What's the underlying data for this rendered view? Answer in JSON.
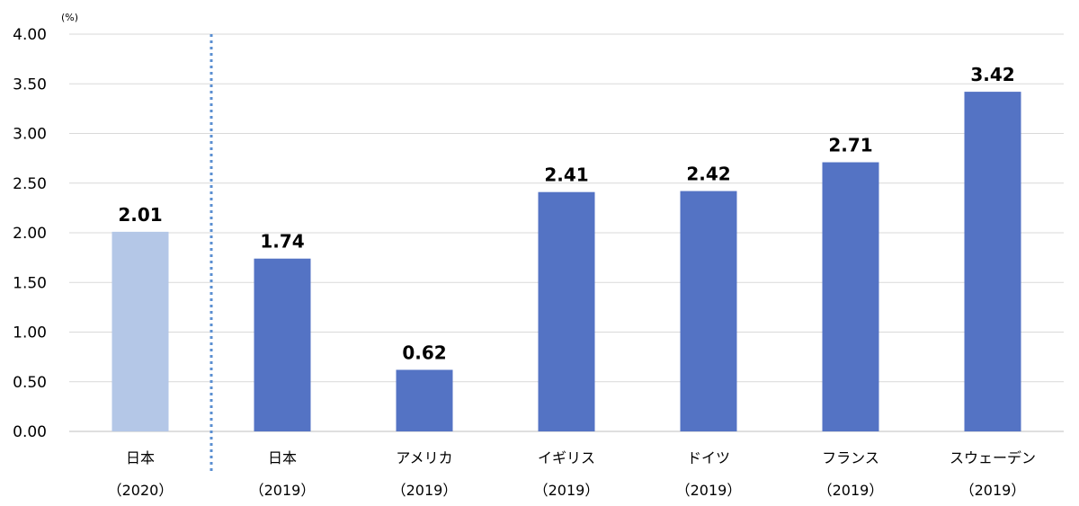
{
  "chart_data": {
    "type": "bar",
    "unit_label": "(%)",
    "ylim": [
      0,
      4
    ],
    "yticks": [
      "0.00",
      "0.50",
      "1.00",
      "1.50",
      "2.00",
      "2.50",
      "3.00",
      "3.50",
      "4.00"
    ],
    "grid": true,
    "categories": [
      "日本",
      "日本",
      "アメリカ",
      "イギリス",
      "ドイツ",
      "フランス",
      "スウェーデン"
    ],
    "years": [
      "（2020）",
      "（2019）",
      "（2019）",
      "（2019）",
      "（2019）",
      "（2019）",
      "（2019）"
    ],
    "values": [
      2.01,
      1.74,
      0.62,
      2.41,
      2.42,
      2.71,
      3.42
    ],
    "value_labels": [
      "2.01",
      "1.74",
      "0.62",
      "2.41",
      "2.42",
      "2.71",
      "3.42"
    ],
    "bar_colors": [
      "#b4c7e7",
      "#5473c4",
      "#5473c4",
      "#5473c4",
      "#5473c4",
      "#5473c4",
      "#5473c4"
    ],
    "divider_after_index": 0,
    "divider_color": "#5b8fd1"
  }
}
